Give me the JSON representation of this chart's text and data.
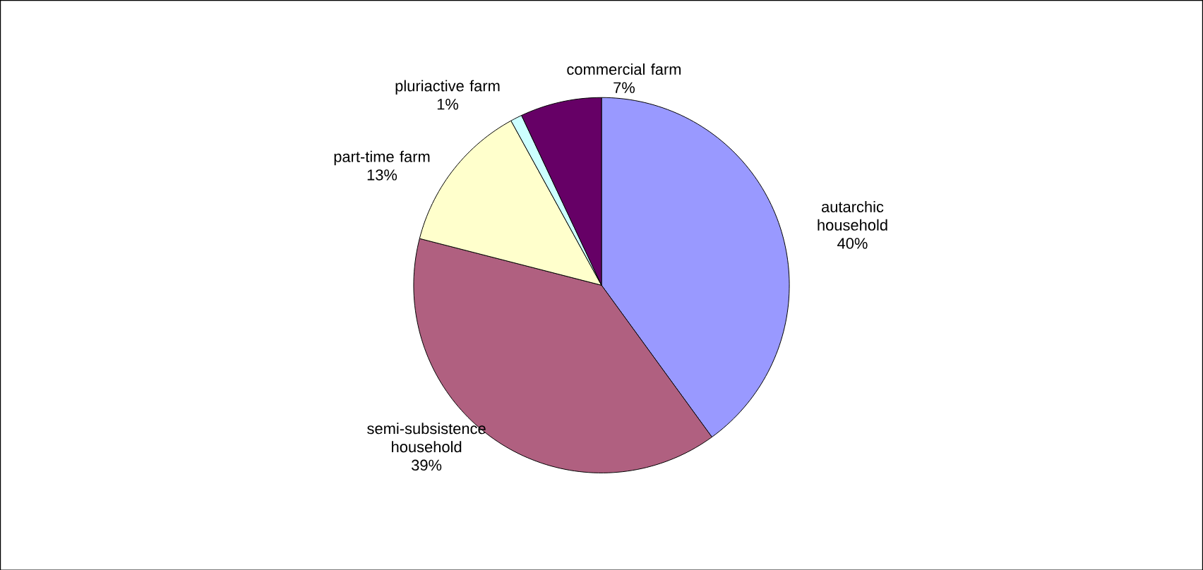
{
  "chart_data": {
    "type": "pie",
    "categories": [
      "autarchic household",
      "semi-subsistence household",
      "part-time farm",
      "pluriactive farm",
      "commercial farm"
    ],
    "values": [
      40,
      39,
      13,
      1,
      7
    ],
    "value_labels": [
      "40%",
      "39%",
      "13%",
      "1%",
      "7%"
    ],
    "colors": [
      "#9999ff",
      "#b06080",
      "#ffffcc",
      "#ccffff",
      "#660066"
    ],
    "legend": false
  }
}
